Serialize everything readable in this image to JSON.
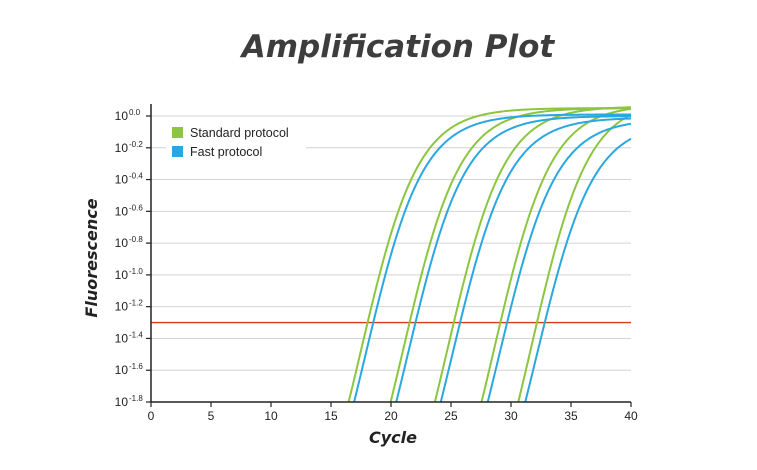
{
  "chart_data": {
    "type": "line",
    "title": "Amplification Plot",
    "xlabel": "Cycle",
    "ylabel": "Fluorescence",
    "xlim": [
      0,
      40
    ],
    "ylim_exponent": [
      -1.8,
      0.0
    ],
    "x_ticks": [
      "0",
      "5",
      "10",
      "15",
      "20",
      "25",
      "30",
      "35",
      "40"
    ],
    "y_ticks": [
      {
        "base": "10",
        "exp": "-1.8"
      },
      {
        "base": "10",
        "exp": "-1.6"
      },
      {
        "base": "10",
        "exp": "-1.4"
      },
      {
        "base": "10",
        "exp": "-1.2"
      },
      {
        "base": "10",
        "exp": "-1.0"
      },
      {
        "base": "10",
        "exp": "-0.8"
      },
      {
        "base": "10",
        "exp": "-0.6"
      },
      {
        "base": "10",
        "exp": "-0.4"
      },
      {
        "base": "10",
        "exp": "-0.2"
      },
      {
        "base": "10",
        "exp": "0.0"
      }
    ],
    "grid": true,
    "legend_position": "top-left",
    "threshold": {
      "exp": -1.3,
      "color": "#d9381e"
    },
    "series": [
      {
        "name": "Standard protocol",
        "color": "#8cc63f",
        "curves": [
          {
            "midpoint_cycle": 17.5,
            "plateau_exp": 0.05
          },
          {
            "midpoint_cycle": 21.0,
            "plateau_exp": 0.05
          },
          {
            "midpoint_cycle": 24.7,
            "plateau_exp": 0.06
          },
          {
            "midpoint_cycle": 28.6,
            "plateau_exp": 0.07
          },
          {
            "midpoint_cycle": 31.7,
            "plateau_exp": 0.1
          }
        ]
      },
      {
        "name": "Fast protocol",
        "color": "#29a8e0",
        "curves": [
          {
            "midpoint_cycle": 17.9,
            "plateau_exp": 0.01
          },
          {
            "midpoint_cycle": 21.4,
            "plateau_exp": 0.0
          },
          {
            "midpoint_cycle": 25.1,
            "plateau_exp": -0.01
          },
          {
            "midpoint_cycle": 29.0,
            "plateau_exp": -0.02
          },
          {
            "midpoint_cycle": 32.1,
            "plateau_exp": -0.04
          }
        ]
      }
    ]
  }
}
